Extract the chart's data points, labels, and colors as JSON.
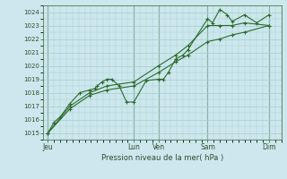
{
  "bg_color": "#cce8ee",
  "grid_color": "#aacccc",
  "line_color": "#2d6a2d",
  "xlabel_text": "Pression niveau de la mer( hPa )",
  "ylim": [
    1014.5,
    1024.5
  ],
  "yticks": [
    1015,
    1016,
    1017,
    1018,
    1019,
    1020,
    1021,
    1022,
    1023,
    1024
  ],
  "day_labels": [
    "Jeu",
    "Lun",
    "Ven",
    "Sam",
    "Dim"
  ],
  "day_positions": [
    0.0,
    3.5,
    4.5,
    6.5,
    9.0
  ],
  "xlim": [
    -0.2,
    9.5
  ],
  "series1": [
    [
      0.0,
      1015.0
    ],
    [
      0.25,
      1015.8
    ],
    [
      0.5,
      1016.2
    ],
    [
      0.9,
      1017.2
    ],
    [
      1.3,
      1018.0
    ],
    [
      1.7,
      1018.2
    ],
    [
      1.9,
      1018.3
    ],
    [
      2.0,
      1018.5
    ],
    [
      2.2,
      1018.8
    ],
    [
      2.4,
      1019.0
    ],
    [
      2.6,
      1019.0
    ],
    [
      2.9,
      1018.5
    ],
    [
      3.2,
      1017.3
    ],
    [
      3.5,
      1017.3
    ],
    [
      4.0,
      1018.9
    ],
    [
      4.5,
      1019.0
    ],
    [
      4.7,
      1019.0
    ],
    [
      4.9,
      1019.5
    ],
    [
      5.2,
      1020.5
    ],
    [
      5.5,
      1020.8
    ],
    [
      5.7,
      1021.2
    ],
    [
      6.5,
      1023.5
    ],
    [
      6.7,
      1023.2
    ],
    [
      7.0,
      1024.2
    ],
    [
      7.3,
      1023.8
    ],
    [
      7.5,
      1023.3
    ],
    [
      8.0,
      1023.8
    ],
    [
      8.5,
      1023.2
    ],
    [
      9.0,
      1023.8
    ]
  ],
  "series2": [
    [
      0.0,
      1015.0
    ],
    [
      0.9,
      1017.0
    ],
    [
      1.7,
      1018.0
    ],
    [
      2.4,
      1018.5
    ],
    [
      3.5,
      1018.8
    ],
    [
      4.5,
      1020.0
    ],
    [
      5.2,
      1020.8
    ],
    [
      5.7,
      1021.5
    ],
    [
      6.5,
      1023.0
    ],
    [
      7.0,
      1023.0
    ],
    [
      7.5,
      1023.0
    ],
    [
      8.0,
      1023.2
    ],
    [
      9.0,
      1023.0
    ]
  ],
  "series3": [
    [
      0.0,
      1015.0
    ],
    [
      0.9,
      1016.8
    ],
    [
      1.7,
      1017.8
    ],
    [
      2.4,
      1018.2
    ],
    [
      3.5,
      1018.5
    ],
    [
      4.5,
      1019.5
    ],
    [
      5.2,
      1020.3
    ],
    [
      5.7,
      1020.8
    ],
    [
      6.5,
      1021.8
    ],
    [
      7.0,
      1022.0
    ],
    [
      7.5,
      1022.3
    ],
    [
      8.0,
      1022.5
    ],
    [
      9.0,
      1023.0
    ]
  ]
}
